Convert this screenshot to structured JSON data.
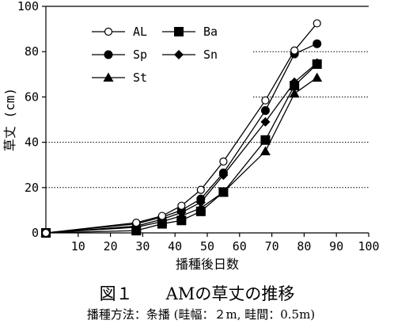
{
  "chart_data": {
    "type": "line",
    "figure_title": "図１　　AMの草丈の推移",
    "figure_subtitle": "播種方法：条播 (畦幅：２m, 畦間：0.5m)",
    "xlabel": "播種後日数",
    "ylabel": "草丈 (cm)",
    "xlim": [
      0,
      100
    ],
    "ylim": [
      0,
      100
    ],
    "x_ticks": [
      10,
      20,
      30,
      40,
      50,
      60,
      70,
      80,
      90,
      100
    ],
    "y_ticks": [
      0,
      20,
      40,
      60,
      80,
      100
    ],
    "y_grid": [
      20,
      40,
      60,
      80
    ],
    "grid": "horizontal dotted",
    "legend_position": "top-left",
    "series": [
      {
        "name": "AL",
        "marker": "open-circle",
        "x": [
          0,
          28,
          36,
          42,
          48,
          55,
          68,
          77,
          84
        ],
        "y": [
          0,
          4.5,
          7.5,
          12,
          19,
          31.5,
          58.5,
          80.5,
          92.5
        ]
      },
      {
        "name": "Sp",
        "marker": "filled-circle",
        "x": [
          0,
          28,
          36,
          42,
          48,
          55,
          68,
          77,
          84
        ],
        "y": [
          0,
          4,
          7,
          10,
          15,
          26.5,
          54,
          79,
          83.5
        ]
      },
      {
        "name": "St",
        "marker": "triangle",
        "x": [
          0,
          28,
          36,
          42,
          48,
          55,
          68,
          77,
          84
        ],
        "y": [
          0,
          2.5,
          5,
          7.5,
          11,
          18,
          36,
          61.5,
          68.5
        ]
      },
      {
        "name": "Ba",
        "marker": "square",
        "x": [
          0,
          28,
          36,
          42,
          48,
          55,
          68,
          77,
          84
        ],
        "y": [
          0,
          1,
          4,
          5.5,
          9.5,
          18,
          41,
          65,
          74.5
        ]
      },
      {
        "name": "Sn",
        "marker": "diamond",
        "x": [
          0,
          28,
          36,
          42,
          48,
          55,
          68,
          77,
          84
        ],
        "y": [
          0,
          3,
          6,
          9,
          13.5,
          25.5,
          49,
          66.5,
          75
        ]
      }
    ]
  }
}
